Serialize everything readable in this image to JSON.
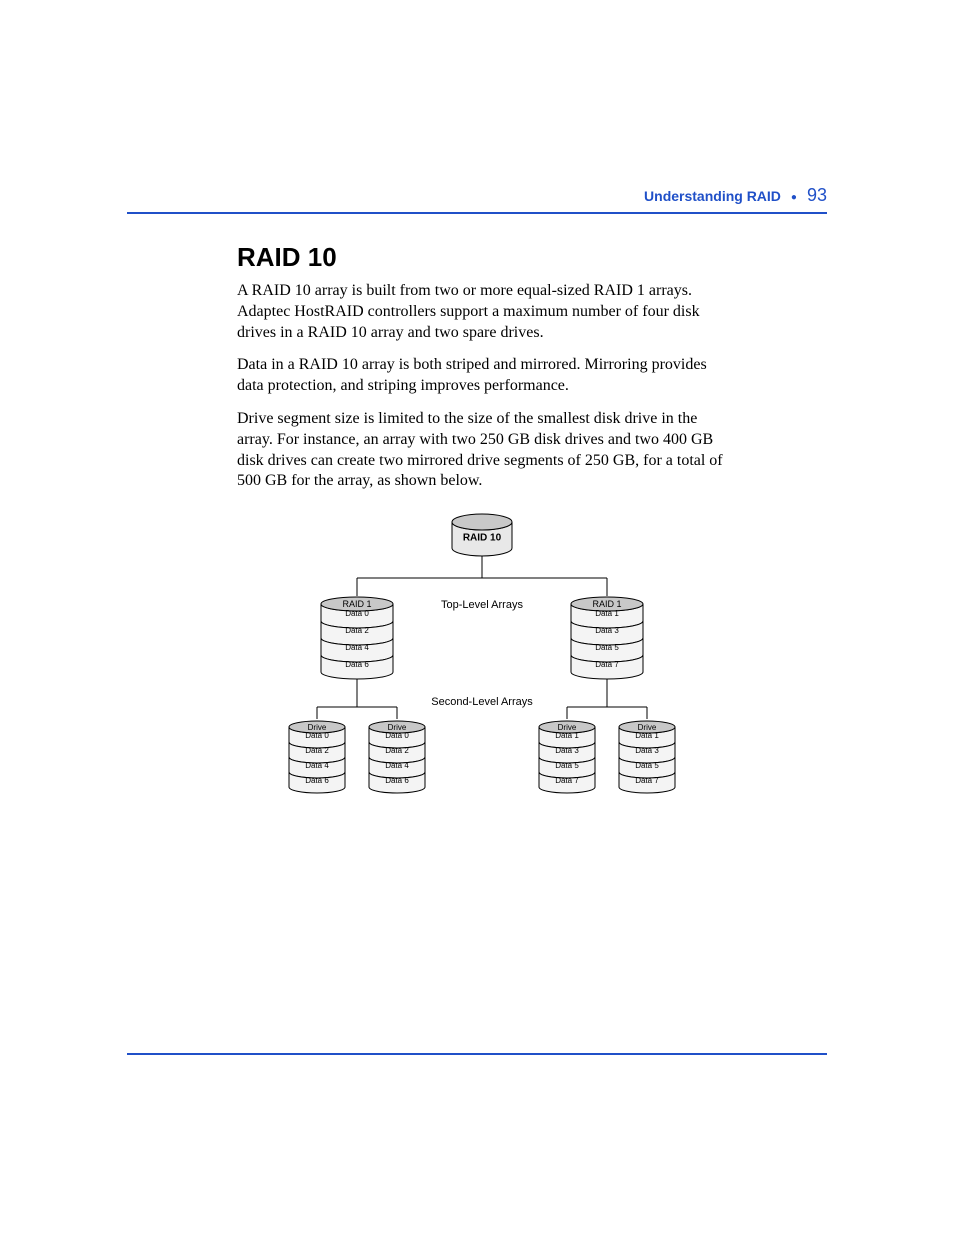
{
  "header": {
    "section": "Understanding RAID",
    "page_number": "93"
  },
  "title": "RAID 10",
  "paragraphs": {
    "p1": "A RAID 10 array is built from two or more equal-sized RAID 1 arrays. Adaptec HostRAID controllers support a maximum number of four disk drives in a RAID 10 array and two spare drives.",
    "p2": "Data in a RAID 10 array is both striped and mirrored. Mirroring provides data protection, and striping improves performance.",
    "p3": "Drive segment size is limited to the size of the smallest disk drive in the array. For instance, an array with two 250 GB disk drives and two 400 GB disk drives can create two mirrored drive segments of 250 GB, for a total of 500 GB for the array, as shown below."
  },
  "diagram": {
    "root_label": "RAID 10",
    "section_top": "Top-Level Arrays",
    "section_bottom": "Second-Level Arrays",
    "top_left": {
      "title": "RAID 1",
      "bands": [
        "Data 0",
        "Data 2",
        "Data 4",
        "Data 6"
      ]
    },
    "top_right": {
      "title": "RAID 1",
      "bands": [
        "Data 1",
        "Data 3",
        "Data 5",
        "Data 7"
      ]
    },
    "bottom": [
      {
        "title": "Drive",
        "bands": [
          "Data 0",
          "Data 2",
          "Data 4",
          "Data 6"
        ]
      },
      {
        "title": "Drive",
        "bands": [
          "Data 0",
          "Data 2",
          "Data 4",
          "Data 6"
        ]
      },
      {
        "title": "Drive",
        "bands": [
          "Data 1",
          "Data 3",
          "Data 5",
          "Data 7"
        ]
      },
      {
        "title": "Drive",
        "bands": [
          "Data 1",
          "Data 3",
          "Data 5",
          "Data 7"
        ]
      }
    ],
    "colors": {
      "top": "#c8c8c8",
      "side": "#e8e8e8",
      "band": "#f4f4f4",
      "line": "#000000",
      "text": "#000000"
    }
  }
}
